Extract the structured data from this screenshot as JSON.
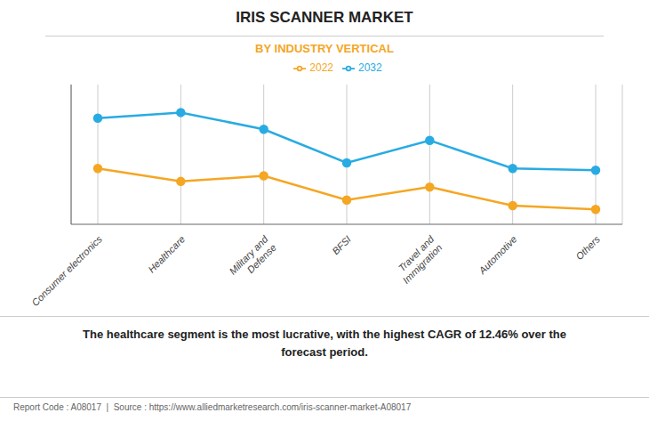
{
  "chart_data": {
    "type": "line",
    "title": "IRIS SCANNER MARKET",
    "subtitle": "BY INDUSTRY VERTICAL",
    "categories": [
      "Consumer electronics",
      "Healthcare",
      "Military and\nDefense",
      "BFSI",
      "Travel and\nImmigration",
      "Automotive",
      "Others"
    ],
    "series": [
      {
        "name": "2022",
        "color": "#F5A623",
        "values": [
          6.5,
          5.8,
          6.1,
          4.8,
          5.5,
          4.5,
          4.3
        ],
        "marker": "circle"
      },
      {
        "name": "2032",
        "color": "#29ABE2",
        "values": [
          9.2,
          9.5,
          8.6,
          6.8,
          8.0,
          6.5,
          6.4
        ],
        "marker": "circle"
      }
    ],
    "ylim": [
      3.5,
      11
    ],
    "yticks": [],
    "grid": true,
    "legend": "top",
    "tick_labels": "x",
    "annotation": "The healthcare segment is the most lucrative, with the highest CAGR of 12.46% over the\nforecast period.",
    "footer": "Report Code : A08017  |  Source : https://www.alliedmarketresearch.com/iris-scanner-market-A08017"
  }
}
